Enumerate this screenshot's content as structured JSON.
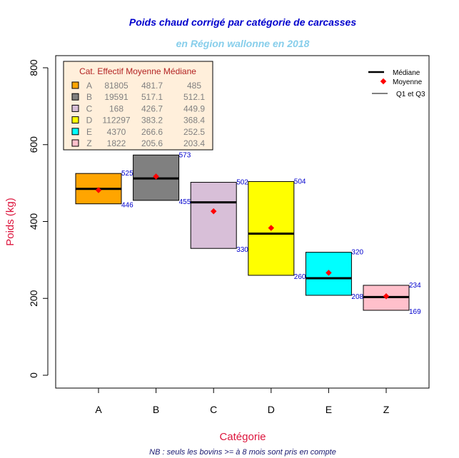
{
  "chart_data": {
    "type": "box",
    "title": "Poids chaud corrigé par catégorie de carcasses",
    "subtitle": "en Région wallonne en 2018",
    "xlabel": "Catégorie",
    "ylabel": "Poids (kg)",
    "note": "NB : seuls les bovins >= à 8 mois sont pris en compte",
    "ylim": [
      0,
      800
    ],
    "yticks": [
      "0",
      "200",
      "400",
      "600",
      "800"
    ],
    "categories": [
      "A",
      "B",
      "C",
      "D",
      "E",
      "Z"
    ],
    "colors": [
      "#FFA500",
      "#808080",
      "#D8BFD8",
      "#FFFF00",
      "#00FFFF",
      "#FFC0CB"
    ],
    "effectif": [
      "81805",
      "19591",
      "168",
      "112297",
      "4370",
      "1822"
    ],
    "moyenne": [
      481.7,
      517.1,
      426.7,
      383.2,
      266.6,
      205.6
    ],
    "mediane": [
      485,
      512.1,
      449.9,
      368.4,
      252.5,
      203.4
    ],
    "q1": [
      446,
      455,
      330,
      260,
      208,
      169
    ],
    "q3": [
      525,
      573,
      502,
      504,
      320,
      234
    ],
    "table_header": [
      "Cat.",
      "Effectif",
      "Moyenne",
      "Médiane"
    ],
    "table_rows": [
      [
        "A",
        "81805",
        "481.7",
        "485"
      ],
      [
        "B",
        "19591",
        "517.1",
        "512.1"
      ],
      [
        "C",
        "168",
        "426.7",
        "449.9"
      ],
      [
        "D",
        "112297",
        "383.2",
        "368.4"
      ],
      [
        "E",
        "4370",
        "266.6",
        "252.5"
      ],
      [
        "Z",
        "1822",
        "205.6",
        "203.4"
      ]
    ],
    "legend": [
      "Médiane",
      "Moyenne",
      "Q1 et Q3"
    ]
  }
}
